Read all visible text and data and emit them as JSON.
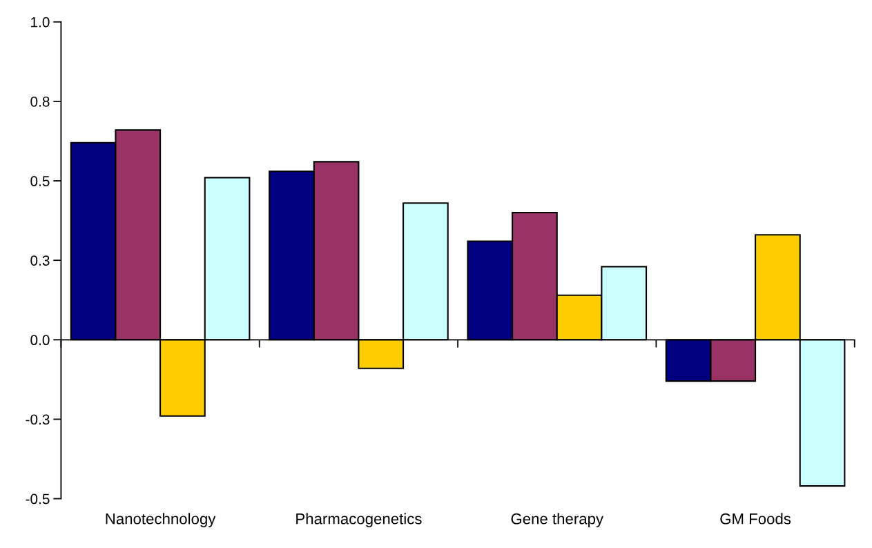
{
  "chart_data": {
    "type": "bar",
    "categories": [
      "Nanotechnology",
      "Pharmacogenetics",
      "Gene therapy",
      "GM Foods"
    ],
    "series": [
      {
        "color": "#000080",
        "values": [
          0.62,
          0.53,
          0.31,
          -0.13
        ]
      },
      {
        "color": "#993366",
        "values": [
          0.66,
          0.56,
          0.4,
          -0.13
        ]
      },
      {
        "color": "#ffcc00",
        "values": [
          -0.24,
          -0.09,
          0.14,
          0.33
        ]
      },
      {
        "color": "#ccffff",
        "values": [
          0.51,
          0.43,
          0.23,
          -0.46
        ]
      }
    ],
    "ylim": [
      -0.5,
      1.0
    ],
    "yticks": [
      {
        "value": -0.5,
        "label": "-0.5"
      },
      {
        "value": -0.25,
        "label": "-0.3"
      },
      {
        "value": 0,
        "label": "0.0"
      },
      {
        "value": 0.25,
        "label": "0.3"
      },
      {
        "value": 0.5,
        "label": "0.5"
      },
      {
        "value": 0.75,
        "label": "0.8"
      },
      {
        "value": 1.0,
        "label": "1.0"
      }
    ],
    "legend": false
  }
}
